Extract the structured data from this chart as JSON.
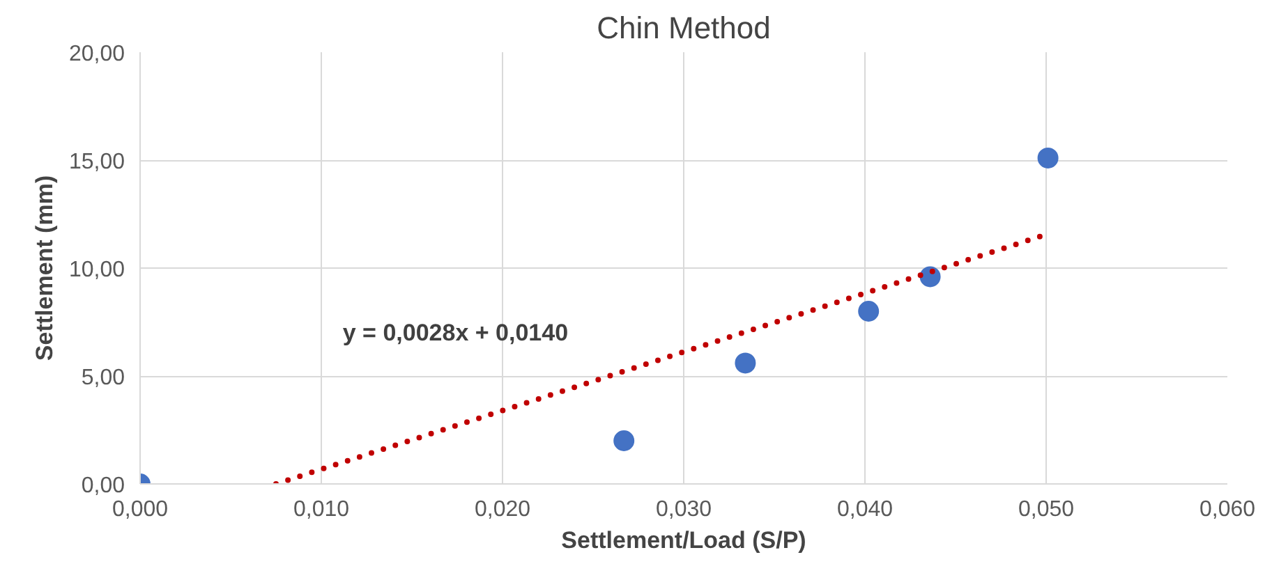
{
  "chart_data": {
    "type": "scatter",
    "title": "Chin Method",
    "xlabel": "Settlement/Load (S/P)",
    "ylabel": "Settlement (mm)",
    "x": [
      0.0,
      0.0267,
      0.0334,
      0.0402,
      0.0436,
      0.0501
    ],
    "series": [
      {
        "color": "#4472c4",
        "marker": "circle",
        "values": [
          0.0,
          2.0,
          5.6,
          8.0,
          9.6,
          15.1
        ]
      },
      {
        "type": "line",
        "color": "#c00000",
        "line_style": "dotted",
        "marker": "none",
        "x": [
          0.0075,
          0.0498
        ],
        "values": [
          0.0,
          11.5
        ]
      }
    ],
    "xlim": [
      0,
      0.06
    ],
    "ylim": [
      0,
      20
    ],
    "xticks": [
      {
        "value": 0,
        "label": "0,000"
      },
      {
        "value": 0.01,
        "label": "0,010"
      },
      {
        "value": 0.02,
        "label": "0,020"
      },
      {
        "value": 0.03,
        "label": "0,030"
      },
      {
        "value": 0.04,
        "label": "0,040"
      },
      {
        "value": 0.05,
        "label": "0,050"
      },
      {
        "value": 0.06,
        "label": "0,060"
      }
    ],
    "yticks": [
      {
        "value": 0,
        "label": "0,00"
      },
      {
        "value": 5,
        "label": "5,00"
      },
      {
        "value": 10,
        "label": "10,00"
      },
      {
        "value": 15,
        "label": "15,00"
      },
      {
        "value": 20,
        "label": "20,00"
      }
    ],
    "annotations": [
      "y = 0,0028x + 0,0140"
    ],
    "grid": true
  }
}
